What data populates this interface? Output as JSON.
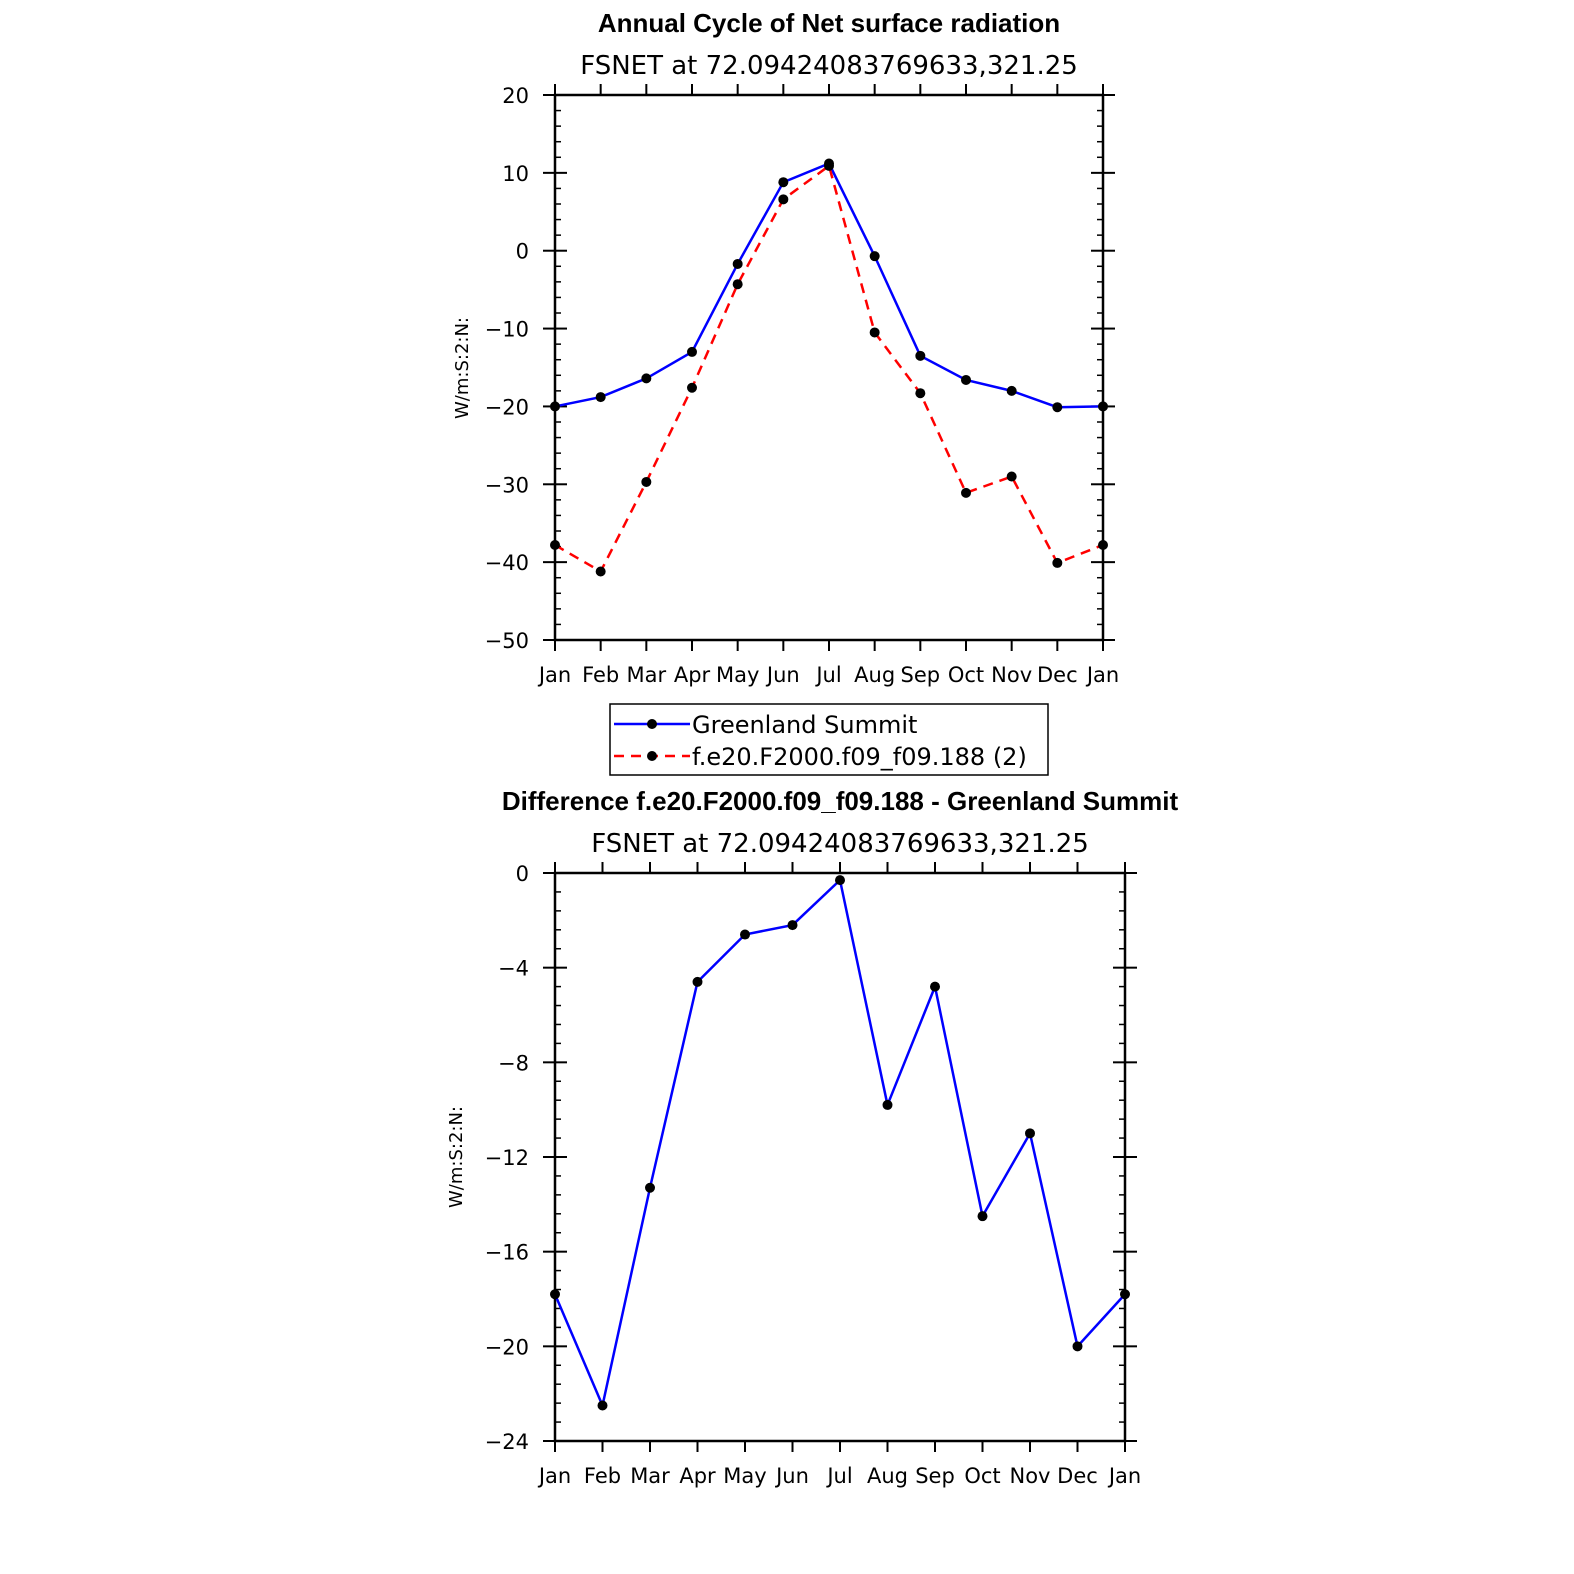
{
  "chart_data": [
    {
      "type": "line",
      "title": "Annual Cycle of Net surface radiation",
      "subtitle": "FSNET at 72.09424083769633,321.25",
      "ylabel": "W/m:S:2:N:",
      "xlabel": "",
      "categories": [
        "Jan",
        "Feb",
        "Mar",
        "Apr",
        "May",
        "Jun",
        "Jul",
        "Aug",
        "Sep",
        "Oct",
        "Nov",
        "Dec",
        "Jan"
      ],
      "ylim": [
        -50,
        20
      ],
      "yticks": [
        -50,
        -40,
        -30,
        -20,
        -10,
        0,
        10,
        20
      ],
      "ytick_labels": [
        "−50",
        "−40",
        "−30",
        "−20",
        "−10",
        "0",
        "10",
        "20"
      ],
      "series": [
        {
          "name": "Greenland Summit",
          "color": "#0000ff",
          "dash": "solid",
          "values": [
            -20.0,
            -18.8,
            -16.4,
            -13.0,
            -1.7,
            8.8,
            11.2,
            -0.7,
            -13.5,
            -16.6,
            -18.0,
            -20.1,
            -20.0
          ]
        },
        {
          "name": "f.e20.F2000.f09_f09.188 (2)",
          "color": "#ff0000",
          "dash": "dashed",
          "values": [
            -37.8,
            -41.2,
            -29.7,
            -17.6,
            -4.3,
            6.6,
            10.9,
            -10.5,
            -18.3,
            -31.1,
            -29.0,
            -40.1,
            -37.8
          ]
        }
      ],
      "legend_position": "bottom"
    },
    {
      "type": "line",
      "title": "Difference f.e20.F2000.f09_f09.188 - Greenland Summit",
      "subtitle": "FSNET at 72.09424083769633,321.25",
      "ylabel": "W/m:S:2:N:",
      "xlabel": "",
      "categories": [
        "Jan",
        "Feb",
        "Mar",
        "Apr",
        "May",
        "Jun",
        "Jul",
        "Aug",
        "Sep",
        "Oct",
        "Nov",
        "Dec",
        "Jan"
      ],
      "ylim": [
        -24,
        0
      ],
      "yticks": [
        -24,
        -20,
        -16,
        -12,
        -8,
        -4,
        0
      ],
      "ytick_labels": [
        "−24",
        "−20",
        "−16",
        "−12",
        "−8",
        "−4",
        "0"
      ],
      "series": [
        {
          "color": "#0000ff",
          "dash": "solid",
          "values": [
            -17.8,
            -22.5,
            -13.3,
            -4.6,
            -2.6,
            -2.2,
            -0.3,
            -9.8,
            -4.8,
            -14.5,
            -11.0,
            -20.0,
            -17.8
          ]
        }
      ]
    }
  ]
}
